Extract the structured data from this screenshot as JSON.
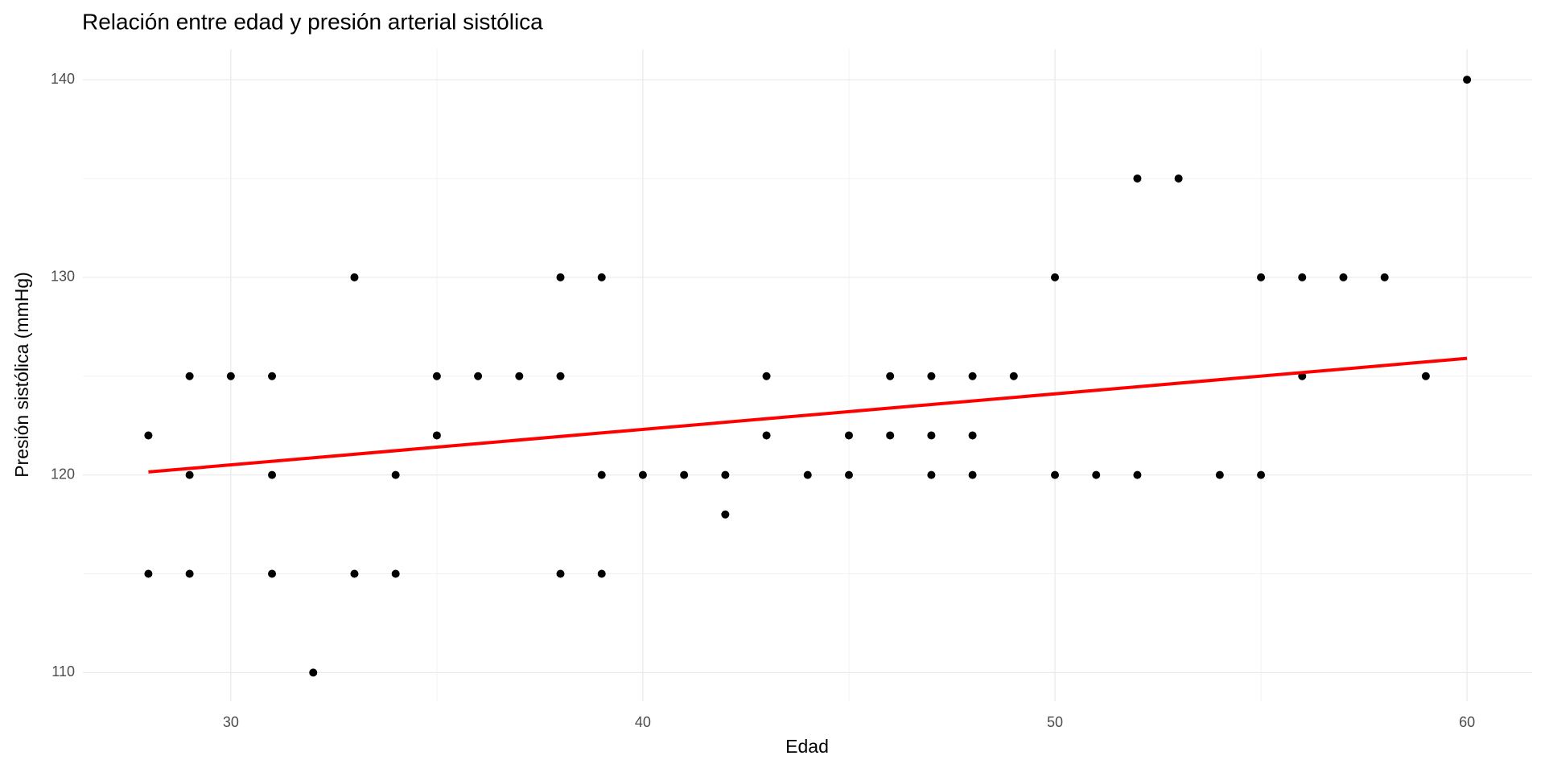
{
  "chart_data": {
    "type": "scatter",
    "title": "Relación entre edad y presión arterial sistólica",
    "x_label": "Edad",
    "y_label": "Presión sistólica (mmHg)",
    "xlim": [
      26.41,
      61.58
    ],
    "ylim": [
      108.55,
      141.55
    ],
    "xticks": [
      30,
      40,
      50,
      60
    ],
    "yticks": [
      110,
      120,
      130,
      140
    ],
    "x_minor_ticks": [
      35,
      45,
      55
    ],
    "y_minor_ticks": [
      115,
      125,
      135
    ],
    "grid": true,
    "points": {
      "color": "#000000",
      "x": [
        28,
        28,
        29,
        29,
        29,
        30,
        31,
        31,
        31,
        32,
        33,
        33,
        34,
        34,
        35,
        35,
        36,
        37,
        38,
        38,
        38,
        39,
        39,
        39,
        40,
        41,
        42,
        42,
        43,
        43,
        44,
        45,
        45,
        46,
        46,
        47,
        47,
        47,
        48,
        48,
        48,
        49,
        50,
        50,
        51,
        52,
        52,
        53,
        54,
        55,
        55,
        56,
        56,
        57,
        58,
        59,
        60
      ],
      "values": [
        122,
        115,
        125,
        120,
        115,
        125,
        125,
        120,
        115,
        110,
        130,
        115,
        120,
        115,
        125,
        122,
        125,
        125,
        130,
        125,
        115,
        130,
        120,
        115,
        120,
        120,
        120,
        118,
        125,
        122,
        120,
        122,
        120,
        125,
        122,
        125,
        122,
        120,
        125,
        122,
        120,
        125,
        130,
        120,
        120,
        135,
        120,
        135,
        120,
        130,
        120,
        130,
        125,
        130,
        130,
        125,
        140
      ]
    },
    "trend": {
      "color": "#ff0000",
      "x": [
        28,
        60
      ],
      "values": [
        120.15,
        125.9
      ]
    }
  }
}
